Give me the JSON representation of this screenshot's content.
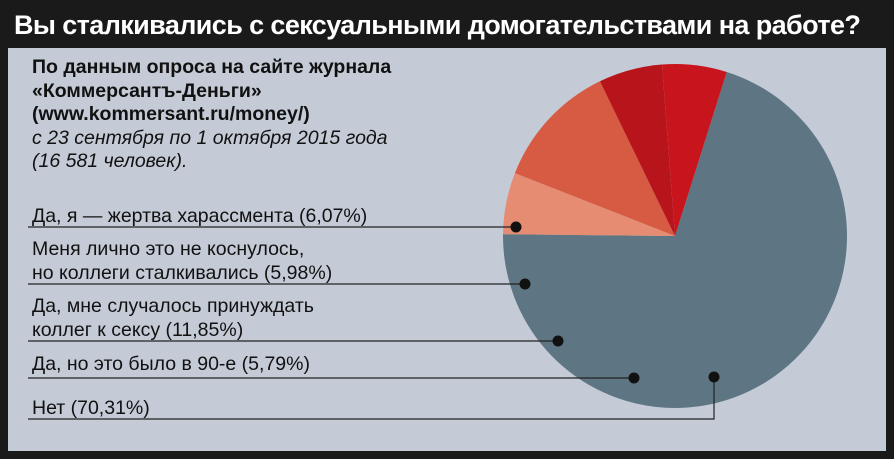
{
  "title": "Вы сталкивались с сексуальными домогательствами на работе?",
  "source": {
    "line1": "По данным опроса на сайте журнала",
    "line2": "«Коммерсантъ-Деньги»",
    "line3": "(www.kommersant.ru/money/)",
    "line4": "с 23 сентября по 1 октября 2015 года",
    "line5": "(16 581 человек)."
  },
  "colors": {
    "background": "#c4cbd6",
    "title_bar": "#1a1a1a"
  },
  "chart_data": {
    "type": "pie",
    "unit": "%",
    "slices": [
      {
        "key": "victim",
        "label_lines": [
          "Да, я — жертва харассмента (6,07%)"
        ],
        "value": 6.07,
        "color": "#c8151d"
      },
      {
        "key": "colleagues",
        "label_lines": [
          "Меня лично это не коснулось,",
          "но коллеги сталкивались (5,98%)"
        ],
        "value": 5.98,
        "color": "#b8141c"
      },
      {
        "key": "coerced",
        "label_lines": [
          "Да, мне случалось принуждать",
          "коллег к сексу (11,85%)"
        ],
        "value": 11.85,
        "color": "#d75a42"
      },
      {
        "key": "nineties",
        "label_lines": [
          "Да, но это было в 90-е (5,79%)"
        ],
        "value": 5.79,
        "color": "#e58c72"
      },
      {
        "key": "no",
        "label_lines": [
          "Нет (70,31%)"
        ],
        "value": 70.31,
        "color": "#5e7683"
      }
    ]
  }
}
